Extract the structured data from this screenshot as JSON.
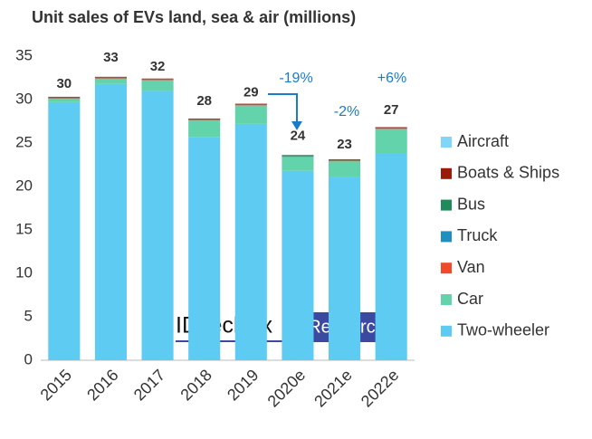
{
  "chart_data": {
    "type": "stacked-bar",
    "title": "Unit sales of EVs land, sea & air (millions)",
    "categories": [
      "2015",
      "2016",
      "2017",
      "2018",
      "2019",
      "2020e",
      "2021e",
      "2022e"
    ],
    "series": [
      {
        "name": "Two-wheeler",
        "color": "#5ecbf2",
        "values": [
          29.7,
          31.8,
          31.0,
          25.7,
          27.2,
          21.8,
          21.1,
          23.8
        ]
      },
      {
        "name": "Car",
        "color": "#62d3ab",
        "values": [
          0.4,
          0.6,
          1.2,
          1.9,
          2.1,
          1.6,
          1.8,
          2.8
        ]
      },
      {
        "name": "Van",
        "color": "#f04a2a",
        "values": [
          0.05,
          0.05,
          0.05,
          0.05,
          0.05,
          0.05,
          0.05,
          0.05
        ]
      },
      {
        "name": "Truck",
        "color": "#1f8fbf",
        "values": [
          0.02,
          0.02,
          0.02,
          0.02,
          0.02,
          0.02,
          0.02,
          0.02
        ]
      },
      {
        "name": "Bus",
        "color": "#1f8a5a",
        "values": [
          0.1,
          0.1,
          0.1,
          0.1,
          0.1,
          0.1,
          0.1,
          0.1
        ]
      },
      {
        "name": "Boats & Ships",
        "color": "#9b1b0a",
        "values": [
          0.05,
          0.05,
          0.05,
          0.05,
          0.05,
          0.05,
          0.05,
          0.05
        ]
      },
      {
        "name": "Aircraft",
        "color": "#7fd6f7",
        "values": [
          0,
          0,
          0,
          0,
          0,
          0,
          0,
          0
        ]
      }
    ],
    "totals": [
      30,
      33,
      32,
      28,
      29,
      24,
      23,
      27
    ],
    "annotations": [
      "-19%",
      "-2%",
      "+6%"
    ],
    "watermark": [
      "IDTechEx",
      "Research"
    ],
    "ylim": [
      0,
      35
    ],
    "yticks": [
      0,
      5,
      10,
      15,
      20,
      25,
      30,
      35
    ],
    "grid": false
  }
}
